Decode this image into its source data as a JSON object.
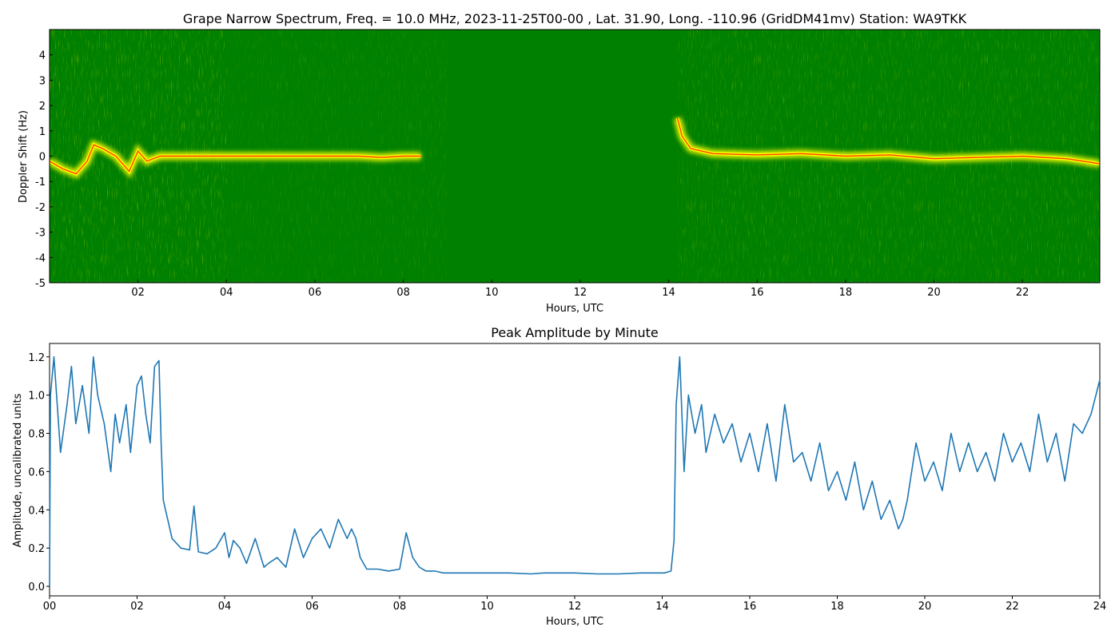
{
  "chart_data": [
    {
      "type": "heatmap",
      "title": "Grape Narrow Spectrum, Freq. = 10.0 MHz, 2023-11-25T00-00 , Lat.  31.90, Long. -110.96 (GridDM41mv) Station: WA9TKK",
      "xlabel": "Hours, UTC",
      "ylabel": "Doppler Shift (Hz)",
      "xlim": [
        0,
        23.75
      ],
      "ylim": [
        -5,
        5
      ],
      "x_ticks": [
        "02",
        "04",
        "06",
        "08",
        "10",
        "12",
        "14",
        "16",
        "18",
        "20",
        "22"
      ],
      "x_tick_values": [
        2,
        4,
        6,
        8,
        10,
        12,
        14,
        16,
        18,
        20,
        22
      ],
      "y_ticks": [
        "-5",
        "-4",
        "-3",
        "-2",
        "-1",
        "0",
        "1",
        "2",
        "3",
        "4"
      ],
      "y_tick_values": [
        -5,
        -4,
        -3,
        -2,
        -1,
        0,
        1,
        2,
        3,
        4
      ],
      "background_color": "#008000",
      "signal_color": "#ffff00",
      "trace_color": "#ff4000",
      "grid": false,
      "doppler_trace": {
        "x": [
          0,
          0.3,
          0.6,
          0.85,
          1.0,
          1.2,
          1.5,
          1.8,
          2.0,
          2.2,
          2.5,
          3.0,
          4.0,
          5.0,
          6.0,
          7.0,
          7.5,
          8.0,
          8.4,
          14.2,
          14.3,
          14.5,
          15.0,
          16.0,
          17.0,
          18.0,
          19.0,
          20.0,
          21.0,
          22.0,
          23.0,
          23.75
        ],
        "y": [
          -0.2,
          -0.5,
          -0.7,
          -0.2,
          0.45,
          0.3,
          0.0,
          -0.6,
          0.2,
          -0.2,
          0.0,
          0.0,
          0.0,
          0.0,
          0.0,
          0.0,
          -0.05,
          0.0,
          0.0,
          1.5,
          0.8,
          0.3,
          0.1,
          0.05,
          0.1,
          0.0,
          0.05,
          -0.1,
          -0.05,
          0.0,
          -0.1,
          -0.3
        ]
      }
    },
    {
      "type": "line",
      "title": "Peak Amplitude by Minute",
      "xlabel": "Hours, UTC",
      "ylabel": "Amplitude, uncalibrated units",
      "xlim": [
        0,
        24
      ],
      "ylim": [
        -0.05,
        1.27
      ],
      "x_ticks": [
        "00",
        "02",
        "04",
        "06",
        "08",
        "10",
        "12",
        "14",
        "16",
        "18",
        "20",
        "22",
        "24"
      ],
      "x_tick_values": [
        0,
        2,
        4,
        6,
        8,
        10,
        12,
        14,
        16,
        18,
        20,
        22,
        24
      ],
      "y_ticks": [
        "0.0",
        "0.2",
        "0.4",
        "0.6",
        "0.8",
        "1.0",
        "1.2"
      ],
      "y_tick_values": [
        0,
        0.2,
        0.4,
        0.6,
        0.8,
        1.0,
        1.2
      ],
      "line_color": "#1f77b4",
      "grid": false,
      "series": [
        {
          "x": [
            0,
            0.02,
            0.1,
            0.25,
            0.4,
            0.5,
            0.6,
            0.75,
            0.9,
            1.0,
            1.1,
            1.25,
            1.4,
            1.5,
            1.6,
            1.75,
            1.85,
            2.0,
            2.1,
            2.2,
            2.3,
            2.4,
            2.5,
            2.55,
            2.6,
            2.7,
            2.8,
            3.0,
            3.2,
            3.3,
            3.4,
            3.6,
            3.8,
            4.0,
            4.1,
            4.2,
            4.35,
            4.5,
            4.7,
            4.9,
            5.0,
            5.2,
            5.4,
            5.6,
            5.8,
            6.0,
            6.2,
            6.4,
            6.6,
            6.8,
            6.9,
            7.0,
            7.1,
            7.25,
            7.5,
            7.75,
            8.0,
            8.15,
            8.3,
            8.45,
            8.6,
            8.8,
            9.0,
            9.5,
            10.0,
            10.5,
            11.0,
            11.3,
            11.5,
            12.0,
            12.5,
            13.0,
            13.5,
            13.9,
            14.05,
            14.2,
            14.27,
            14.32,
            14.4,
            14.5,
            14.6,
            14.75,
            14.9,
            15.0,
            15.2,
            15.4,
            15.6,
            15.8,
            16.0,
            16.2,
            16.4,
            16.6,
            16.8,
            17.0,
            17.2,
            17.4,
            17.6,
            17.8,
            18.0,
            18.2,
            18.4,
            18.6,
            18.8,
            19.0,
            19.2,
            19.4,
            19.5,
            19.6,
            19.8,
            20.0,
            20.2,
            20.4,
            20.6,
            20.8,
            21.0,
            21.2,
            21.4,
            21.6,
            21.8,
            22.0,
            22.2,
            22.4,
            22.6,
            22.8,
            23.0,
            23.2,
            23.4,
            23.6,
            23.8,
            24.0
          ],
          "values": [
            0.0,
            1.0,
            1.2,
            0.7,
            0.95,
            1.15,
            0.85,
            1.05,
            0.8,
            1.2,
            1.0,
            0.85,
            0.6,
            0.9,
            0.75,
            0.95,
            0.7,
            1.05,
            1.1,
            0.9,
            0.75,
            1.15,
            1.18,
            0.75,
            0.45,
            0.35,
            0.25,
            0.2,
            0.19,
            0.42,
            0.18,
            0.17,
            0.2,
            0.28,
            0.15,
            0.24,
            0.2,
            0.12,
            0.25,
            0.1,
            0.12,
            0.15,
            0.1,
            0.3,
            0.15,
            0.25,
            0.3,
            0.2,
            0.35,
            0.25,
            0.3,
            0.25,
            0.15,
            0.09,
            0.09,
            0.08,
            0.09,
            0.28,
            0.15,
            0.1,
            0.08,
            0.08,
            0.07,
            0.07,
            0.07,
            0.07,
            0.065,
            0.07,
            0.07,
            0.07,
            0.065,
            0.065,
            0.07,
            0.07,
            0.07,
            0.08,
            0.24,
            0.95,
            1.2,
            0.6,
            1.0,
            0.8,
            0.95,
            0.7,
            0.9,
            0.75,
            0.85,
            0.65,
            0.8,
            0.6,
            0.85,
            0.55,
            0.95,
            0.65,
            0.7,
            0.55,
            0.75,
            0.5,
            0.6,
            0.45,
            0.65,
            0.4,
            0.55,
            0.35,
            0.45,
            0.3,
            0.35,
            0.45,
            0.75,
            0.55,
            0.65,
            0.5,
            0.8,
            0.6,
            0.75,
            0.6,
            0.7,
            0.55,
            0.8,
            0.65,
            0.75,
            0.6,
            0.9,
            0.65,
            0.8,
            0.55,
            0.85,
            0.8,
            0.9,
            1.08
          ]
        }
      ]
    }
  ]
}
